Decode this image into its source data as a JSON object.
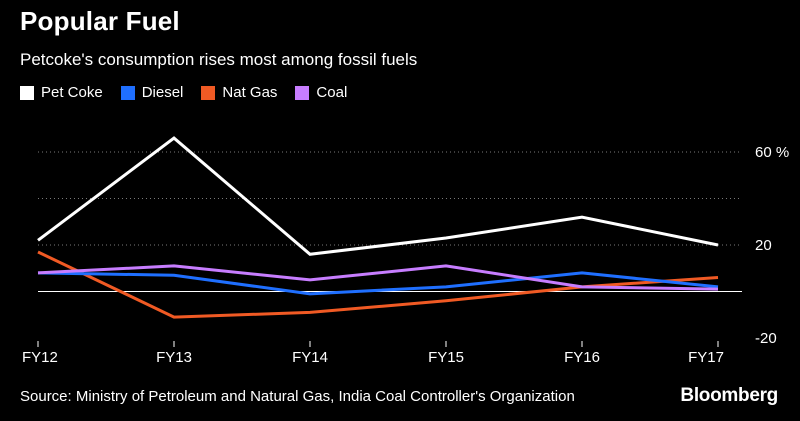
{
  "colors": {
    "background": "#000000",
    "grid": "#7a7a7a",
    "pet_coke": "#ffffff",
    "diesel": "#1f6fff",
    "nat_gas": "#f05a24",
    "coal": "#c77dff"
  },
  "header": {
    "title": "Popular Fuel",
    "subtitle": "Petcoke's consumption rises most among fossil fuels"
  },
  "legend": [
    {
      "label": "Pet Coke",
      "color": "#ffffff"
    },
    {
      "label": "Diesel",
      "color": "#1f6fff"
    },
    {
      "label": "Nat Gas",
      "color": "#f05a24"
    },
    {
      "label": "Coal",
      "color": "#c77dff"
    }
  ],
  "footer": {
    "source": "Source: Ministry of Petroleum and Natural Gas, India Coal Controller's Organization",
    "brand": "Bloomberg"
  },
  "chart_data": {
    "type": "line",
    "categories": [
      "FY12",
      "FY13",
      "FY14",
      "FY15",
      "FY16",
      "FY17"
    ],
    "series": [
      {
        "name": "Pet Coke",
        "color": "#ffffff",
        "values": [
          22,
          66,
          16,
          23,
          32,
          20
        ]
      },
      {
        "name": "Diesel",
        "color": "#1f6fff",
        "values": [
          8,
          7,
          -1,
          2,
          8,
          2
        ]
      },
      {
        "name": "Nat Gas",
        "color": "#f05a24",
        "values": [
          17,
          -11,
          -9,
          -4,
          2,
          6
        ]
      },
      {
        "name": "Coal",
        "color": "#c77dff",
        "values": [
          8,
          11,
          5,
          11,
          2,
          1
        ]
      }
    ],
    "ylim": [
      -20,
      60
    ],
    "yticks": [
      -20,
      20,
      60
    ],
    "ytick_labels": [
      "-20",
      "20",
      "60 %"
    ],
    "grid": true,
    "legend_position": "top-left"
  }
}
